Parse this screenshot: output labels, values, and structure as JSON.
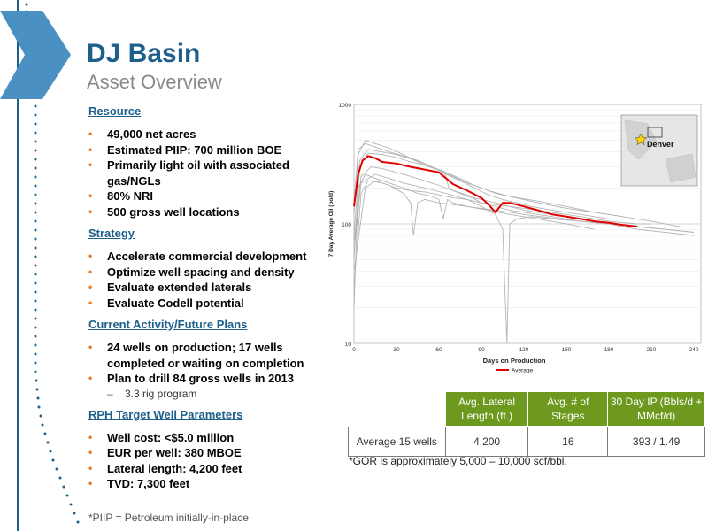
{
  "page": {
    "title": "DJ Basin",
    "subtitle": "Asset Overview"
  },
  "sections": [
    {
      "heading": "Resource",
      "items": [
        {
          "text": "49,000 net acres"
        },
        {
          "text": "Estimated PIIP: 700 million BOE"
        },
        {
          "text": "Primarily light oil with associated gas/NGLs"
        },
        {
          "text": "80% NRI"
        },
        {
          "text": "500 gross well locations"
        }
      ]
    },
    {
      "heading": "Strategy",
      "items": [
        {
          "text": "Accelerate commercial development"
        },
        {
          "text": "Optimize well spacing and density"
        },
        {
          "text": "Evaluate extended laterals"
        },
        {
          "text": "Evaluate Codell potential"
        }
      ]
    },
    {
      "heading": "Current Activity/Future Plans",
      "items": [
        {
          "text": "24 wells on production; 17 wells completed or waiting on completion"
        },
        {
          "text": "Plan to drill 84 gross wells in 2013",
          "sub": [
            "3.3 rig program"
          ]
        }
      ]
    },
    {
      "heading": "RPH Target Well Parameters",
      "items": [
        {
          "text": "Well cost: <$5.0 million"
        },
        {
          "text": "EUR per well: 380 MBOE"
        },
        {
          "text": "Lateral length: 4,200 feet"
        },
        {
          "text": "TVD: 7,300 feet"
        }
      ]
    }
  ],
  "footnote": "*PIIP = Petroleum initially-in-place",
  "table": {
    "headers": [
      "",
      "Avg. Lateral Length (ft.)",
      "Avg. # of Stages",
      "30 Day IP (Bbls/d + MMcf/d)"
    ],
    "rows": [
      [
        "Average 15 wells",
        "4,200",
        "16",
        "393 / 1.49"
      ]
    ],
    "note": "*GOR is approximately 5,000 – 10,000 scf/bbl."
  },
  "map_inset": {
    "label": "Denver",
    "icon": "star-icon"
  },
  "colors": {
    "accent": "#1f5f8b",
    "bullet": "#e87722",
    "table_header": "#6d9a1e",
    "average_line": "#e00000",
    "well_lines": "#b4b4b4"
  },
  "chart_data": {
    "type": "line",
    "xlabel": "Days on Production",
    "ylabel": "7 Day Average Oil (bo/d)",
    "xlim": [
      0,
      245
    ],
    "ylim": [
      10,
      1000
    ],
    "yscale": "log",
    "x_ticks": [
      "0",
      "30",
      "60",
      "90",
      "120",
      "150",
      "180",
      "210",
      "240"
    ],
    "y_ticks": [
      "10",
      "100",
      "1000"
    ],
    "legend": "bottom",
    "series": [
      {
        "name": "Average",
        "color": "#e00000",
        "x": [
          0,
          3,
          6,
          10,
          15,
          20,
          30,
          40,
          50,
          60,
          70,
          80,
          90,
          95,
          100,
          105,
          110,
          115,
          120,
          130,
          140,
          150,
          160,
          170,
          180,
          190,
          200
        ],
        "y": [
          140,
          260,
          340,
          370,
          355,
          330,
          320,
          300,
          285,
          270,
          215,
          190,
          165,
          145,
          125,
          150,
          150,
          145,
          140,
          130,
          120,
          115,
          110,
          105,
          102,
          98,
          95
        ]
      },
      {
        "x": [
          0,
          3,
          8,
          15,
          25,
          35,
          45,
          55,
          65,
          75,
          85,
          95,
          110,
          130,
          150,
          170,
          190,
          210,
          230
        ],
        "y": [
          120,
          380,
          500,
          470,
          430,
          380,
          330,
          300,
          270,
          240,
          210,
          190,
          170,
          150,
          135,
          125,
          115,
          105,
          95
        ]
      },
      {
        "x": [
          0,
          4,
          10,
          20,
          30,
          40,
          50,
          60,
          64,
          67,
          70,
          80,
          90,
          100,
          110,
          120,
          130,
          140,
          150,
          160,
          180,
          200,
          220,
          240
        ],
        "y": [
          50,
          300,
          390,
          380,
          360,
          330,
          310,
          280,
          270,
          200,
          190,
          175,
          150,
          140,
          130,
          125,
          120,
          115,
          110,
          105,
          100,
          95,
          90,
          85
        ]
      },
      {
        "x": [
          0,
          5,
          12,
          20,
          30,
          40,
          50,
          60,
          70,
          80,
          90,
          100,
          110,
          120,
          130,
          140,
          160,
          180,
          200,
          210
        ],
        "y": [
          70,
          250,
          300,
          290,
          270,
          250,
          230,
          210,
          190,
          170,
          160,
          150,
          140,
          135,
          130,
          125,
          115,
          105,
          100,
          100
        ]
      },
      {
        "x": [
          0,
          3,
          8,
          15,
          25,
          35,
          45,
          55,
          60,
          63,
          66,
          70,
          80,
          95,
          110,
          130,
          150,
          170
        ],
        "y": [
          20,
          200,
          260,
          240,
          220,
          200,
          180,
          170,
          160,
          110,
          160,
          150,
          140,
          130,
          120,
          110,
          100,
          90
        ]
      },
      {
        "x": [
          0,
          5,
          10,
          20,
          30,
          40,
          50,
          60,
          70,
          80,
          90,
          100,
          110,
          120,
          140,
          160,
          180,
          200,
          220,
          240
        ],
        "y": [
          30,
          180,
          230,
          220,
          200,
          190,
          185,
          175,
          165,
          160,
          150,
          145,
          140,
          130,
          120,
          110,
          100,
          90,
          85,
          80
        ]
      },
      {
        "x": [
          0,
          8,
          15,
          25,
          35,
          40,
          42,
          45,
          50,
          60,
          70,
          80,
          90,
          100,
          110,
          120,
          140,
          160,
          180,
          200
        ],
        "y": [
          40,
          200,
          230,
          210,
          180,
          150,
          80,
          150,
          160,
          150,
          145,
          140,
          135,
          130,
          125,
          120,
          112,
          105,
          100,
          95
        ]
      },
      {
        "x": [
          0,
          4,
          10,
          20,
          30,
          40,
          50,
          60,
          70,
          80,
          90,
          100,
          110,
          130,
          150,
          170,
          190
        ],
        "y": [
          80,
          340,
          420,
          400,
          380,
          350,
          320,
          280,
          250,
          220,
          200,
          180,
          170,
          155,
          140,
          125,
          115
        ]
      },
      {
        "x": [
          0,
          5,
          15,
          25,
          35,
          50,
          65,
          80,
          90,
          100,
          105,
          108,
          110,
          115,
          125,
          140,
          160,
          180,
          200,
          220,
          240
        ],
        "y": [
          60,
          220,
          260,
          240,
          220,
          200,
          180,
          160,
          140,
          120,
          90,
          10,
          100,
          110,
          115,
          110,
          105,
          100,
          95,
          90,
          85
        ]
      },
      {
        "x": [
          0,
          3,
          8,
          15,
          25,
          35,
          45,
          55,
          65,
          75,
          85,
          95,
          105,
          115,
          125,
          140,
          160,
          180
        ],
        "y": [
          150,
          420,
          470,
          440,
          400,
          370,
          340,
          300,
          260,
          230,
          200,
          175,
          160,
          150,
          140,
          130,
          120,
          110
        ]
      }
    ]
  }
}
